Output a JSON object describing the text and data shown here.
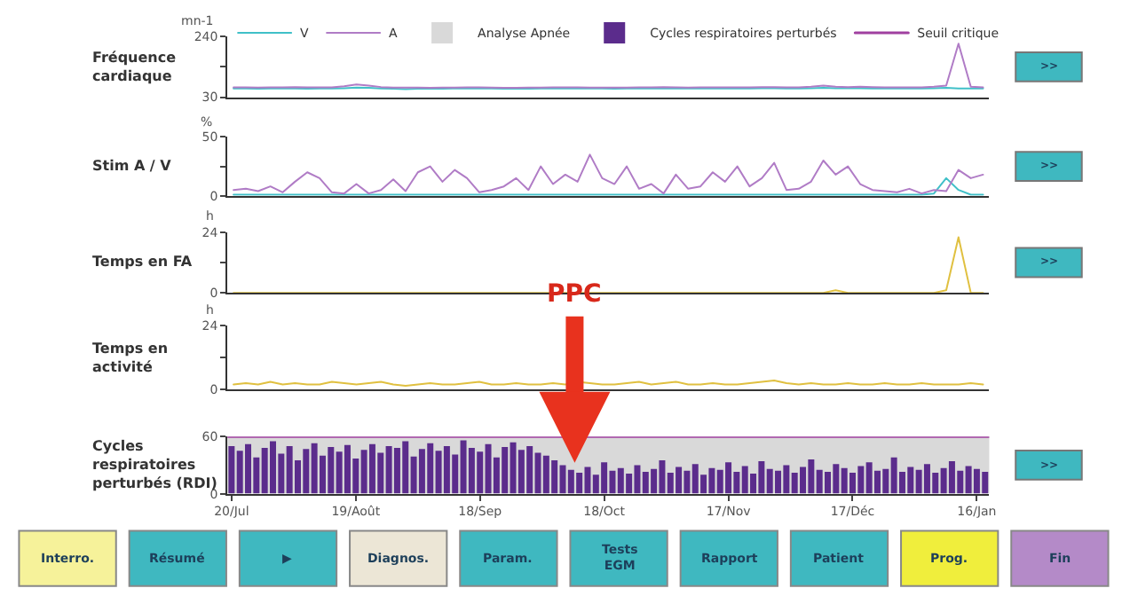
{
  "chart_data": [
    {
      "type": "line",
      "ylabel": "Fréquence cardiaque",
      "subtitle": "mn-1",
      "legend": "top",
      "tick_labels": "y",
      "ylim": [
        30,
        240
      ],
      "yticks": [
        30,
        {
          "value": 135,
          "label": null
        },
        240
      ],
      "categories": [
        null,
        null,
        null,
        null,
        null,
        null,
        null,
        null,
        null,
        null,
        null,
        null,
        null,
        null,
        null,
        null,
        null,
        null,
        null,
        null,
        null,
        null,
        null,
        null,
        null,
        null,
        null,
        null,
        null,
        null,
        null,
        null,
        null,
        null,
        null,
        null,
        null,
        null,
        null,
        null,
        null,
        null,
        null,
        null,
        null,
        null,
        null,
        null,
        null,
        null,
        null,
        null,
        null,
        null,
        null,
        null,
        null,
        null,
        null,
        null,
        null,
        null
      ],
      "series": [
        {
          "name": "V",
          "color": "#40c0c8",
          "values": [
            60,
            60,
            59,
            60,
            60,
            60,
            59,
            60,
            60,
            61,
            63,
            62,
            60,
            59,
            58,
            59,
            59,
            59,
            60,
            60,
            60,
            60,
            59,
            59,
            59,
            60,
            60,
            60,
            60,
            60,
            60,
            59,
            60,
            60,
            60,
            61,
            60,
            60,
            60,
            60,
            60,
            60,
            60,
            61,
            61,
            60,
            60,
            61,
            62,
            61,
            61,
            61,
            60,
            60,
            60,
            60,
            60,
            61,
            62,
            60,
            60,
            60
          ]
        },
        {
          "name": "A",
          "color": "#b07cc6",
          "values": [
            64,
            64,
            63,
            64,
            64,
            65,
            64,
            64,
            64,
            68,
            74,
            70,
            65,
            63,
            63,
            63,
            62,
            63,
            63,
            64,
            64,
            63,
            62,
            62,
            63,
            63,
            64,
            64,
            64,
            63,
            63,
            63,
            63,
            64,
            64,
            65,
            64,
            63,
            64,
            64,
            64,
            64,
            64,
            65,
            65,
            64,
            64,
            66,
            70,
            66,
            65,
            66,
            65,
            64,
            64,
            64,
            64,
            66,
            70,
            215,
            66,
            64
          ]
        }
      ],
      "annotations": [
        ">>"
      ]
    },
    {
      "type": "line",
      "ylabel": "Stim A / V",
      "subtitle": "%",
      "tick_labels": "y",
      "ylim": [
        0,
        50
      ],
      "yticks": [
        0,
        {
          "value": 25,
          "label": null
        },
        50
      ],
      "categories": [
        null,
        null,
        null,
        null,
        null,
        null,
        null,
        null,
        null,
        null,
        null,
        null,
        null,
        null,
        null,
        null,
        null,
        null,
        null,
        null,
        null,
        null,
        null,
        null,
        null,
        null,
        null,
        null,
        null,
        null,
        null,
        null,
        null,
        null,
        null,
        null,
        null,
        null,
        null,
        null,
        null,
        null,
        null,
        null,
        null,
        null,
        null,
        null,
        null,
        null,
        null,
        null,
        null,
        null,
        null,
        null,
        null,
        null,
        null,
        null,
        null,
        null
      ],
      "series": [
        {
          "name": "V",
          "color": "#40c0c8",
          "values": [
            1,
            1,
            1,
            1,
            1,
            1,
            1,
            1,
            1,
            1,
            1,
            1,
            1,
            1,
            1,
            1,
            1,
            1,
            1,
            1,
            1,
            1,
            1,
            1,
            1,
            1,
            1,
            1,
            1,
            1,
            1,
            1,
            1,
            1,
            1,
            1,
            1,
            1,
            1,
            1,
            1,
            1,
            1,
            1,
            1,
            1,
            1,
            1,
            1,
            1,
            1,
            1,
            1,
            1,
            1,
            1,
            1,
            2,
            15,
            5,
            1,
            1
          ]
        },
        {
          "name": "A",
          "color": "#b07cc6",
          "values": [
            5,
            6,
            4,
            8,
            3,
            12,
            20,
            15,
            3,
            2,
            10,
            2,
            5,
            14,
            4,
            20,
            25,
            12,
            22,
            15,
            3,
            5,
            8,
            15,
            5,
            25,
            10,
            18,
            12,
            35,
            15,
            10,
            25,
            6,
            10,
            2,
            18,
            6,
            8,
            20,
            12,
            25,
            8,
            15,
            28,
            5,
            6,
            12,
            30,
            18,
            25,
            10,
            5,
            4,
            3,
            6,
            2,
            5,
            4,
            22,
            15,
            18
          ]
        }
      ],
      "annotations": [
        ">>"
      ]
    },
    {
      "type": "line",
      "ylabel": "Temps en FA",
      "subtitle": "h",
      "tick_labels": "y",
      "ylim": [
        0,
        24
      ],
      "yticks": [
        0,
        {
          "value": 12,
          "label": null
        },
        24
      ],
      "categories": [
        null,
        null,
        null,
        null,
        null,
        null,
        null,
        null,
        null,
        null,
        null,
        null,
        null,
        null,
        null,
        null,
        null,
        null,
        null,
        null,
        null,
        null,
        null,
        null,
        null,
        null,
        null,
        null,
        null,
        null,
        null,
        null,
        null,
        null,
        null,
        null,
        null,
        null,
        null,
        null,
        null,
        null,
        null,
        null,
        null,
        null,
        null,
        null,
        null,
        null,
        null,
        null,
        null,
        null,
        null,
        null,
        null,
        null,
        null,
        null,
        null,
        null
      ],
      "series": [
        {
          "color": "#e0c040",
          "values": [
            0,
            0,
            0,
            0,
            0,
            0,
            0,
            0,
            0,
            0,
            0,
            0,
            0,
            0,
            0,
            0,
            0,
            0,
            0,
            0,
            0,
            0,
            0,
            0,
            0,
            0,
            0,
            0,
            0,
            0,
            0,
            0,
            0,
            0,
            0,
            0,
            0,
            0,
            0,
            0,
            0,
            0,
            0,
            0,
            0,
            0,
            0,
            0,
            0,
            1,
            0,
            0,
            0,
            0,
            0,
            0,
            0,
            0,
            1,
            22,
            0,
            0
          ]
        }
      ],
      "annotations": [
        ">>"
      ]
    },
    {
      "type": "line",
      "ylabel": "Temps en activité",
      "subtitle": "h",
      "tick_labels": "y",
      "ylim": [
        0,
        24
      ],
      "yticks": [
        0,
        {
          "value": 12,
          "label": null
        },
        24
      ],
      "categories": [
        null,
        null,
        null,
        null,
        null,
        null,
        null,
        null,
        null,
        null,
        null,
        null,
        null,
        null,
        null,
        null,
        null,
        null,
        null,
        null,
        null,
        null,
        null,
        null,
        null,
        null,
        null,
        null,
        null,
        null,
        null,
        null,
        null,
        null,
        null,
        null,
        null,
        null,
        null,
        null,
        null,
        null,
        null,
        null,
        null,
        null,
        null,
        null,
        null,
        null,
        null,
        null,
        null,
        null,
        null,
        null,
        null,
        null,
        null,
        null,
        null,
        null
      ],
      "series": [
        {
          "color": "#e0c040",
          "values": [
            2,
            2.5,
            2,
            3,
            2,
            2.5,
            2,
            2,
            3,
            2.5,
            2,
            2.5,
            3,
            2,
            1.5,
            2,
            2.5,
            2,
            2,
            2.5,
            3,
            2,
            2,
            2.5,
            2,
            2,
            2.5,
            2,
            3,
            2.5,
            2,
            2,
            2.5,
            3,
            2,
            2.5,
            3,
            2,
            2,
            2.5,
            2,
            2,
            2.5,
            3,
            3.5,
            2.5,
            2,
            2.5,
            2,
            2,
            2.5,
            2,
            2,
            2.5,
            2,
            2,
            2.5,
            2,
            2,
            2,
            2.5,
            2
          ]
        }
      ]
    },
    {
      "type": "bar",
      "ylabel": "Cycles respiratoires perturbés (RDI)",
      "legend": "top",
      "ylim": [
        0,
        60
      ],
      "yticks": [
        0,
        60
      ],
      "categories": [
        "20/Jul",
        null,
        null,
        null,
        null,
        null,
        null,
        null,
        null,
        null,
        null,
        null,
        null,
        null,
        null,
        "19/Août",
        null,
        null,
        null,
        null,
        null,
        null,
        null,
        null,
        null,
        null,
        null,
        null,
        null,
        null,
        "18/Sep",
        null,
        null,
        null,
        null,
        null,
        null,
        null,
        null,
        null,
        null,
        null,
        null,
        null,
        null,
        "18/Oct",
        null,
        null,
        null,
        null,
        null,
        null,
        null,
        null,
        null,
        null,
        null,
        null,
        null,
        null,
        "17/Nov",
        null,
        null,
        null,
        null,
        null,
        null,
        null,
        null,
        null,
        null,
        null,
        null,
        null,
        null,
        "17/Déc",
        null,
        null,
        null,
        null,
        null,
        null,
        null,
        null,
        null,
        null,
        null,
        null,
        null,
        null,
        "16/Jan",
        null
      ],
      "series": [
        {
          "name": "Cycles respiratoires perturbés",
          "color": "#5b2c8c",
          "values": [
            50,
            45,
            52,
            38,
            48,
            55,
            42,
            50,
            35,
            47,
            53,
            40,
            49,
            44,
            51,
            37,
            46,
            52,
            43,
            50,
            48,
            55,
            39,
            47,
            53,
            45,
            50,
            41,
            56,
            48,
            44,
            52,
            38,
            49,
            54,
            46,
            50,
            43,
            40,
            35,
            30,
            25,
            22,
            28,
            20,
            33,
            24,
            27,
            21,
            30,
            23,
            26,
            35,
            22,
            28,
            24,
            31,
            20,
            27,
            25,
            33,
            23,
            29,
            21,
            34,
            26,
            24,
            30,
            22,
            28,
            36,
            25,
            23,
            31,
            27,
            22,
            29,
            33,
            24,
            26,
            38,
            23,
            28,
            25,
            31,
            22,
            27,
            34,
            24,
            29,
            26,
            23
          ]
        }
      ],
      "bands": [
        {
          "axis": "y",
          "from": 0,
          "to": 60,
          "label": "Analyse Apnée",
          "color": "#d9d9d9"
        }
      ],
      "ref_lines": [
        {
          "axis": "y",
          "value": 60,
          "label": "Seuil critique",
          "color": "#a040a0"
        }
      ],
      "annotations": [
        "PPC",
        ">>"
      ]
    },
    {
      "type": "other",
      "categories": [
        "Interro.",
        "Résumé",
        "▶",
        "Diagnos.",
        "Param.",
        "Tests EGM",
        "Rapport",
        "Patient",
        "Prog.",
        "Fin"
      ],
      "colors": [
        "#f6f29a",
        "#3fb8c0",
        "#3fb8c0",
        "#ece6d6",
        "#3fb8c0",
        "#3fb8c0",
        "#3fb8c0",
        "#3fb8c0",
        "#f0ee3c",
        "#b48ac8"
      ]
    }
  ]
}
